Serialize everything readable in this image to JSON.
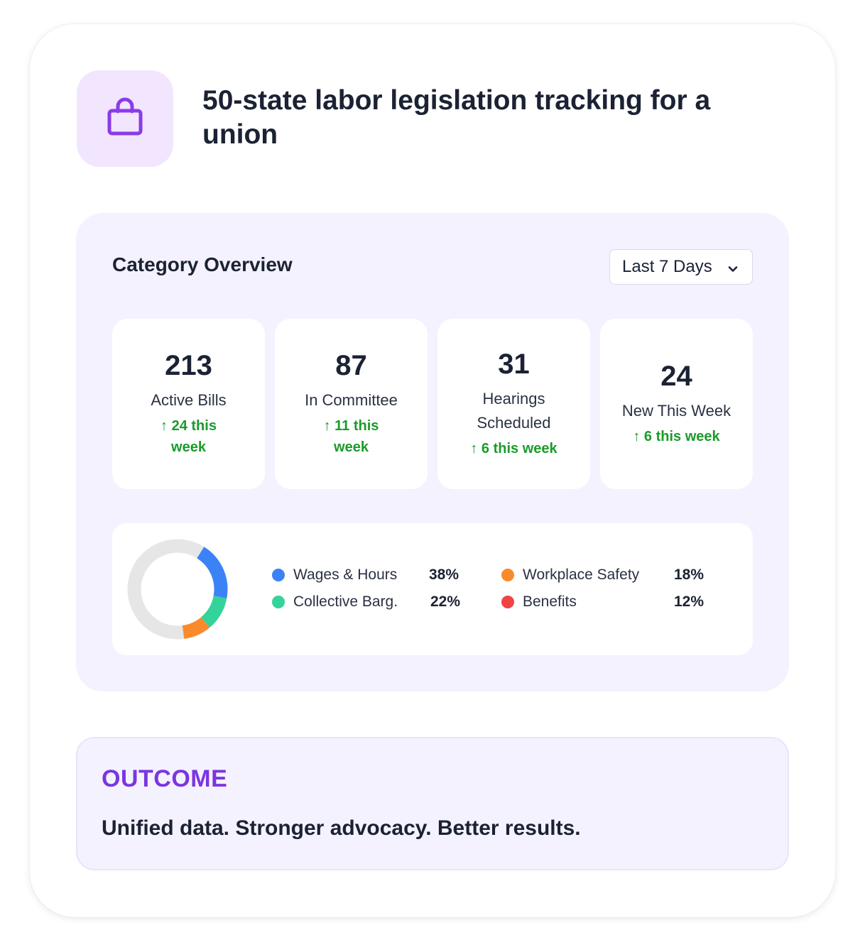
{
  "header": {
    "icon": "shopping-bag-icon",
    "title": "50-state labor legislation tracking for a union",
    "icon_color": "#8b3be8",
    "icon_bg": "#f1e6fd"
  },
  "overview": {
    "title": "Category Overview",
    "range_select": {
      "value": "Last 7 Days",
      "icon": "chevron-down-icon"
    },
    "stats": [
      {
        "value": "213",
        "label": "Active Bills",
        "change": "24 this week"
      },
      {
        "value": "87",
        "label": "In Committee",
        "change": "11 this week"
      },
      {
        "value": "31",
        "label": "Hearings Scheduled",
        "change": "6 this week"
      },
      {
        "value": "24",
        "label": "New This Week",
        "change": "6 this week"
      }
    ],
    "change_color": "#1a9b2b"
  },
  "chart_data": {
    "type": "pie",
    "donut": true,
    "series": [
      {
        "name": "Wages & Hours",
        "value": 38,
        "label": "38%",
        "color": "#3b82f6"
      },
      {
        "name": "Collective Barg.",
        "value": 22,
        "label": "22%",
        "color": "#34d399"
      },
      {
        "name": "Workplace Safety",
        "value": 18,
        "label": "18%",
        "color": "#fb8a2c"
      },
      {
        "name": "Benefits",
        "value": 12,
        "label": "12%",
        "color": "#ef4444"
      }
    ],
    "remainder_color": "#e6e6e6"
  },
  "outcome": {
    "label": "OUTCOME",
    "text": "Unified data. Stronger advocacy. Better results."
  }
}
